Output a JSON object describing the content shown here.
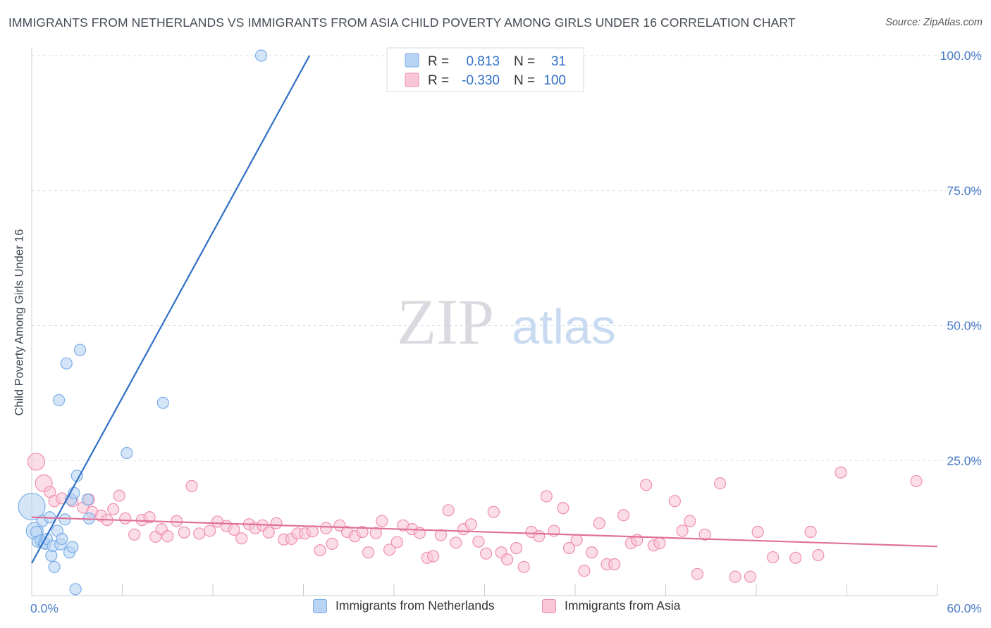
{
  "title": "IMMIGRANTS FROM NETHERLANDS VS IMMIGRANTS FROM ASIA CHILD POVERTY AMONG GIRLS UNDER 16 CORRELATION CHART",
  "source": "Source: ZipAtlas.com",
  "watermark": {
    "zip": "ZIP",
    "atlas": "atlas"
  },
  "colors": {
    "blue": "#7aaee8",
    "blue_fill": "#b9d3f3",
    "blue_line": "#2f6fc6",
    "pink": "#ef8fb0",
    "pink_fill": "#f8c6d7",
    "pink_line": "#e0709a",
    "axis_text": "#4a7cc7",
    "grid": "#d8dde6"
  },
  "legend_top": {
    "rows": [
      {
        "r_label": "R =",
        "r_value": "0.813",
        "n_label": "N =",
        "n_value": "31"
      },
      {
        "r_label": "R =",
        "r_value": "-0.330",
        "n_label": "N =",
        "n_value": "100"
      }
    ]
  },
  "legend_bottom": [
    "Immigrants from Netherlands",
    "Immigrants from Asia"
  ],
  "chart_data": {
    "type": "scatter",
    "title": "IMMIGRANTS FROM NETHERLANDS VS IMMIGRANTS FROM ASIA CHILD POVERTY AMONG GIRLS UNDER 16 CORRELATION CHART",
    "xlabel": "",
    "ylabel": "Child Poverty Among Girls Under 16",
    "xlim": [
      0,
      60
    ],
    "ylim": [
      0,
      100
    ],
    "x_tick_labels": [
      "0.0%",
      "60.0%"
    ],
    "y_tick_labels": [
      "25.0%",
      "50.0%",
      "75.0%",
      "100.0%"
    ],
    "y_ticks": [
      25,
      50,
      75,
      100
    ],
    "series": [
      {
        "name": "Immigrants from Netherlands",
        "R": 0.813,
        "N": 31,
        "trend": {
          "x": [
            0,
            18.4
          ],
          "y": [
            6.0,
            100.0
          ]
        },
        "points": [
          [
            0.0,
            16.5,
            4
          ],
          [
            0.2,
            12.0,
            2
          ],
          [
            0.3,
            11.8,
            1
          ],
          [
            0.4,
            10.0,
            1
          ],
          [
            0.6,
            10.2,
            1
          ],
          [
            0.7,
            13.8,
            1
          ],
          [
            0.8,
            9.8,
            1
          ],
          [
            0.9,
            9.6,
            1
          ],
          [
            1.0,
            10.5,
            1
          ],
          [
            1.2,
            14.5,
            1
          ],
          [
            1.3,
            7.4,
            1
          ],
          [
            1.4,
            9.2,
            1
          ],
          [
            1.5,
            5.3,
            1
          ],
          [
            1.7,
            12.0,
            1
          ],
          [
            1.8,
            36.2,
            1
          ],
          [
            1.9,
            9.5,
            1
          ],
          [
            2.0,
            10.5,
            1
          ],
          [
            2.2,
            14.1,
            1
          ],
          [
            2.3,
            43.0,
            1
          ],
          [
            2.5,
            8.0,
            1
          ],
          [
            2.6,
            17.8,
            1
          ],
          [
            2.7,
            9.0,
            1
          ],
          [
            2.8,
            19.0,
            1
          ],
          [
            2.9,
            1.2,
            1
          ],
          [
            3.0,
            22.2,
            1
          ],
          [
            3.2,
            45.5,
            1
          ],
          [
            3.7,
            17.8,
            1
          ],
          [
            3.8,
            14.3,
            1
          ],
          [
            6.3,
            26.4,
            1
          ],
          [
            8.7,
            35.7,
            1
          ],
          [
            15.2,
            100.0,
            1
          ]
        ]
      },
      {
        "name": "Immigrants from Asia",
        "R": -0.33,
        "N": 100,
        "trend": {
          "x": [
            0,
            60
          ],
          "y": [
            14.5,
            9.1
          ]
        },
        "points": [
          [
            0.3,
            24.8,
            2
          ],
          [
            0.8,
            20.8,
            2
          ],
          [
            1.2,
            19.2,
            1
          ],
          [
            1.5,
            17.5,
            1
          ],
          [
            2.0,
            18.0,
            1
          ],
          [
            2.7,
            17.5,
            1
          ],
          [
            3.4,
            16.3,
            1
          ],
          [
            3.8,
            17.8,
            1
          ],
          [
            4.0,
            15.5,
            1
          ],
          [
            4.6,
            14.8,
            1
          ],
          [
            5.0,
            14.0,
            1
          ],
          [
            5.4,
            16.0,
            1
          ],
          [
            5.8,
            18.5,
            1
          ],
          [
            6.2,
            14.3,
            1
          ],
          [
            6.8,
            11.3,
            1
          ],
          [
            7.3,
            14.0,
            1
          ],
          [
            7.8,
            14.5,
            1
          ],
          [
            8.2,
            10.9,
            1
          ],
          [
            8.6,
            12.3,
            1
          ],
          [
            9.0,
            11.0,
            1
          ],
          [
            9.6,
            13.8,
            1
          ],
          [
            10.1,
            11.7,
            1
          ],
          [
            10.6,
            20.3,
            1
          ],
          [
            11.1,
            11.5,
            1
          ],
          [
            11.8,
            12.0,
            1
          ],
          [
            12.3,
            13.7,
            1
          ],
          [
            12.9,
            12.9,
            1
          ],
          [
            13.4,
            12.2,
            1
          ],
          [
            13.9,
            10.6,
            1
          ],
          [
            14.4,
            13.2,
            1
          ],
          [
            14.8,
            12.5,
            1
          ],
          [
            15.3,
            13.0,
            1
          ],
          [
            15.7,
            11.7,
            1
          ],
          [
            16.2,
            13.4,
            1
          ],
          [
            16.7,
            10.4,
            1
          ],
          [
            17.2,
            10.5,
            1
          ],
          [
            17.6,
            11.5,
            1
          ],
          [
            18.1,
            11.5,
            1
          ],
          [
            18.6,
            11.9,
            1
          ],
          [
            19.1,
            8.4,
            1
          ],
          [
            19.5,
            12.5,
            1
          ],
          [
            19.9,
            9.6,
            1
          ],
          [
            20.4,
            13.0,
            1
          ],
          [
            20.9,
            11.8,
            1
          ],
          [
            21.4,
            11.0,
            1
          ],
          [
            21.9,
            11.8,
            1
          ],
          [
            22.3,
            8.0,
            1
          ],
          [
            22.8,
            11.6,
            1
          ],
          [
            23.2,
            13.8,
            1
          ],
          [
            23.7,
            8.5,
            1
          ],
          [
            24.2,
            9.9,
            1
          ],
          [
            24.6,
            13.0,
            1
          ],
          [
            25.2,
            12.3,
            1
          ],
          [
            25.7,
            11.6,
            1
          ],
          [
            26.2,
            7.0,
            1
          ],
          [
            26.6,
            7.3,
            1
          ],
          [
            27.1,
            11.2,
            1
          ],
          [
            27.6,
            15.8,
            1
          ],
          [
            28.1,
            9.8,
            1
          ],
          [
            28.6,
            12.3,
            1
          ],
          [
            29.1,
            13.2,
            1
          ],
          [
            29.6,
            10.0,
            1
          ],
          [
            30.1,
            7.8,
            1
          ],
          [
            30.6,
            15.5,
            1
          ],
          [
            31.1,
            8.0,
            1
          ],
          [
            31.5,
            6.7,
            1
          ],
          [
            32.1,
            8.8,
            1
          ],
          [
            32.6,
            5.3,
            1
          ],
          [
            33.1,
            11.8,
            1
          ],
          [
            33.6,
            11.0,
            1
          ],
          [
            34.1,
            18.4,
            1
          ],
          [
            34.6,
            12.0,
            1
          ],
          [
            35.2,
            16.2,
            1
          ],
          [
            35.6,
            8.8,
            1
          ],
          [
            36.1,
            10.3,
            1
          ],
          [
            36.6,
            4.6,
            1
          ],
          [
            37.1,
            8.0,
            1
          ],
          [
            37.6,
            13.4,
            1
          ],
          [
            38.1,
            5.8,
            1
          ],
          [
            38.6,
            5.8,
            1
          ],
          [
            39.2,
            14.9,
            1
          ],
          [
            39.7,
            9.7,
            1
          ],
          [
            40.1,
            10.3,
            1
          ],
          [
            40.7,
            20.5,
            1
          ],
          [
            41.2,
            9.3,
            1
          ],
          [
            41.6,
            9.7,
            1
          ],
          [
            42.6,
            17.5,
            1
          ],
          [
            43.1,
            12.0,
            1
          ],
          [
            43.6,
            13.8,
            1
          ],
          [
            44.1,
            4.0,
            1
          ],
          [
            44.6,
            11.3,
            1
          ],
          [
            45.6,
            20.8,
            1
          ],
          [
            46.6,
            3.5,
            1
          ],
          [
            47.6,
            3.5,
            1
          ],
          [
            48.1,
            11.8,
            1
          ],
          [
            49.1,
            7.1,
            1
          ],
          [
            50.6,
            7.0,
            1
          ],
          [
            51.6,
            11.8,
            1
          ],
          [
            52.1,
            7.5,
            1
          ],
          [
            53.6,
            22.8,
            1
          ],
          [
            58.6,
            21.2,
            1
          ]
        ]
      }
    ]
  }
}
